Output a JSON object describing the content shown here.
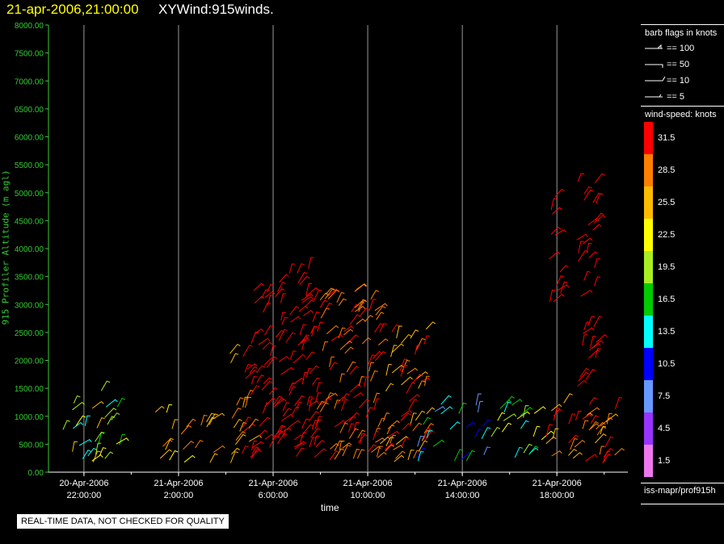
{
  "title": {
    "datetime": "21-apr-2006,21:00:00",
    "main": "XYWind:915winds."
  },
  "quality_notice": "REAL-TIME DATA, NOT CHECKED FOR QUALITY",
  "source_label": "iss-mapr/prof915h",
  "colors": {
    "background": "#000000",
    "axis": "#33cc33",
    "title_date": "#ffff00",
    "grid": "#999999"
  },
  "barb_legend": {
    "title": "barb flags in knots",
    "items": [
      {
        "label": "== 100",
        "knots": 100
      },
      {
        "label": "== 50",
        "knots": 50
      },
      {
        "label": "== 10",
        "knots": 10
      },
      {
        "label": "== 5",
        "knots": 5
      }
    ]
  },
  "colorbar": {
    "title": "wind-speed: knots",
    "entries": [
      {
        "label": "31.5",
        "value": 31.5,
        "color": "#ff0000"
      },
      {
        "label": "28.5",
        "value": 28.5,
        "color": "#ff7f00"
      },
      {
        "label": "25.5",
        "value": 25.5,
        "color": "#ffbb00"
      },
      {
        "label": "22.5",
        "value": 22.5,
        "color": "#ffff00"
      },
      {
        "label": "19.5",
        "value": 19.5,
        "color": "#aaee22"
      },
      {
        "label": "16.5",
        "value": 16.5,
        "color": "#00cc00"
      },
      {
        "label": "13.5",
        "value": 13.5,
        "color": "#00ffff"
      },
      {
        "label": "10.5",
        "value": 10.5,
        "color": "#0000ff"
      },
      {
        "label": "7.5",
        "value": 7.5,
        "color": "#6699ff"
      },
      {
        "label": "4.5",
        "value": 4.5,
        "color": "#9933ff"
      },
      {
        "label": "1.5",
        "value": 1.5,
        "color": "#ee77ee"
      }
    ]
  },
  "chart_data": {
    "type": "scatter",
    "title": "XYWind:915winds.",
    "xlabel": "time",
    "ylabel": "915 Profiler Altitude (m agl)",
    "ylim": [
      0,
      8000
    ],
    "xlim": [
      "2006-04-20 20:30",
      "2006-04-21 21:00"
    ],
    "yticks": [
      "0.00",
      "500.00",
      "1000.00",
      "1500.00",
      "2000.00",
      "2500.00",
      "3000.00",
      "3500.00",
      "4000.00",
      "4500.00",
      "5000.00",
      "5500.00",
      "6000.00",
      "6500.00",
      "7000.00",
      "7500.00",
      "8000.00"
    ],
    "xticks": [
      {
        "date": "20-Apr-2006",
        "time": "22:00:00"
      },
      {
        "date": "21-Apr-2006",
        "time": "2:00:00"
      },
      {
        "date": "21-Apr-2006",
        "time": "6:00:00"
      },
      {
        "date": "21-Apr-2006",
        "time": "10:00:00"
      },
      {
        "date": "21-Apr-2006",
        "time": "14:00:00"
      },
      {
        "date": "21-Apr-2006",
        "time": "18:00:00"
      }
    ],
    "grid": "vertical at x ticks",
    "regions": [
      {
        "start": "2006-04-20 20:45",
        "end": "2006-04-21 00:00",
        "top": 1500,
        "speed": "mixed",
        "colors": [
          "#00cc00",
          "#ffff00",
          "#ffbb00",
          "#aaee22",
          "#00ffff"
        ]
      },
      {
        "start": "2006-04-21 00:45",
        "end": "2006-04-21 03:30",
        "top": 1300,
        "speed": "moderate",
        "colors": [
          "#ffbb00",
          "#ff7f00",
          "#ffff00"
        ]
      },
      {
        "start": "2006-04-21 04:10",
        "end": "2006-04-21 05:00",
        "top": 2500,
        "speed": "strong",
        "colors": [
          "#ff0000",
          "#ff7f00",
          "#ffbb00"
        ]
      },
      {
        "start": "2006-04-21 05:00",
        "end": "2006-04-21 07:50",
        "top": 3750,
        "speed": "strong",
        "colors": [
          "#ff0000"
        ]
      },
      {
        "start": "2006-04-21 07:50",
        "end": "2006-04-21 10:30",
        "top": 3300,
        "speed": "strong",
        "colors": [
          "#ff0000",
          "#ff7f00"
        ]
      },
      {
        "start": "2006-04-21 10:30",
        "end": "2006-04-21 12:30",
        "top": 2600,
        "speed": "strong",
        "colors": [
          "#ff0000",
          "#ff7f00",
          "#ffbb00"
        ]
      },
      {
        "start": "2006-04-21 12:00",
        "end": "2006-04-21 15:00",
        "top": 1300,
        "speed": "weak",
        "colors": [
          "#0000ff",
          "#00ffff",
          "#00cc00",
          "#6699ff"
        ]
      },
      {
        "start": "2006-04-21 15:00",
        "end": "2006-04-21 17:30",
        "top": 1400,
        "speed": "mixed",
        "colors": [
          "#00ffff",
          "#00cc00",
          "#ffff00",
          "#aaee22"
        ]
      },
      {
        "start": "2006-04-21 17:30",
        "end": "2006-04-21 20:30",
        "top": 1300,
        "speed": "strong",
        "colors": [
          "#ff0000",
          "#ff7f00",
          "#ffbb00"
        ]
      },
      {
        "start": "2006-04-21 17:40",
        "end": "2006-04-21 18:10",
        "bottom": 2800,
        "top": 5000,
        "speed": "strong",
        "colors": [
          "#ff0000"
        ]
      },
      {
        "start": "2006-04-21 18:50",
        "end": "2006-04-21 19:40",
        "bottom": 1500,
        "top": 5300,
        "speed": "strong",
        "colors": [
          "#ff0000"
        ]
      }
    ]
  }
}
